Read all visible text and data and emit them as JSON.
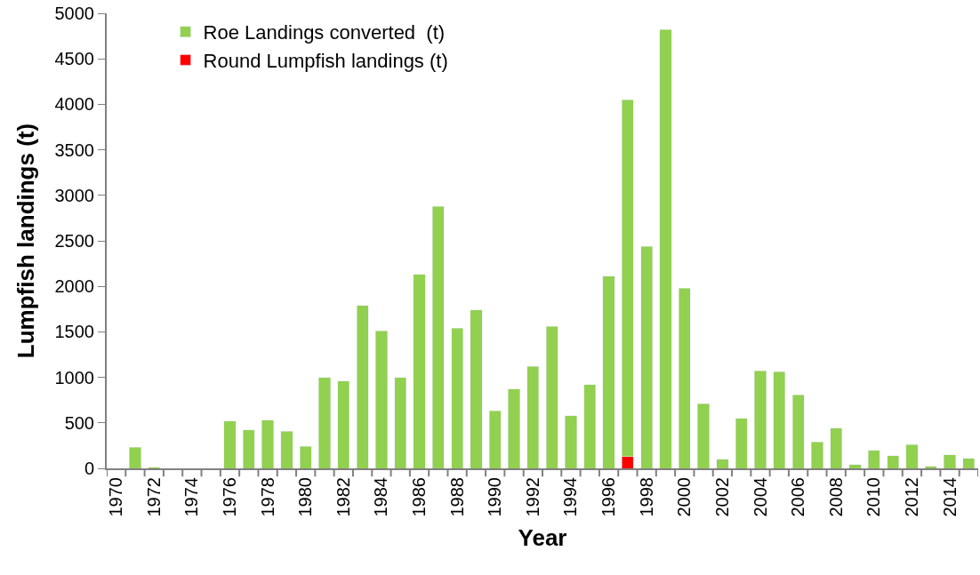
{
  "chart_data": {
    "type": "bar",
    "stacked": true,
    "xlabel": "Year",
    "ylabel": "Lumpfish landings (t)",
    "categories": [
      "1970",
      null,
      "1972",
      null,
      "1974",
      null,
      "1976",
      null,
      "1978",
      null,
      "1980",
      null,
      "1982",
      null,
      "1984",
      null,
      "1986",
      null,
      "1988",
      null,
      "1990",
      null,
      "1992",
      null,
      "1994",
      null,
      "1996",
      null,
      "1998",
      null,
      "2000",
      null,
      "2002",
      null,
      "2004",
      null,
      "2006",
      null,
      "2008",
      null,
      "2010",
      null,
      "2012",
      null,
      "2014",
      null
    ],
    "series": [
      {
        "name": "Round Lumpfish landings (t)",
        "color": "#ff0000",
        "values": [
          null,
          null,
          null,
          null,
          null,
          null,
          null,
          null,
          null,
          null,
          null,
          null,
          null,
          null,
          null,
          null,
          null,
          null,
          null,
          null,
          null,
          null,
          null,
          null,
          null,
          null,
          null,
          130,
          null,
          null,
          null,
          null,
          null,
          null,
          null,
          null,
          null,
          null,
          null,
          null,
          null,
          null,
          null,
          null,
          null,
          null
        ]
      },
      {
        "name": "Roe Landings converted  (t)",
        "color": "#92d050",
        "values": [
          null,
          230,
          10,
          null,
          null,
          null,
          520,
          420,
          530,
          410,
          240,
          1000,
          960,
          1790,
          1510,
          1000,
          2130,
          2880,
          1540,
          1740,
          630,
          870,
          1120,
          1560,
          580,
          920,
          2110,
          3920,
          2440,
          4820,
          1980,
          710,
          100,
          550,
          1070,
          1060,
          810,
          290,
          440,
          40,
          200,
          140,
          260,
          20,
          150,
          110
        ]
      }
    ],
    "ylim": [
      0,
      5000
    ],
    "yticks": [
      0,
      500,
      1000,
      1500,
      2000,
      2500,
      3000,
      3500,
      4000,
      4500,
      5000
    ],
    "legend": "top left"
  }
}
